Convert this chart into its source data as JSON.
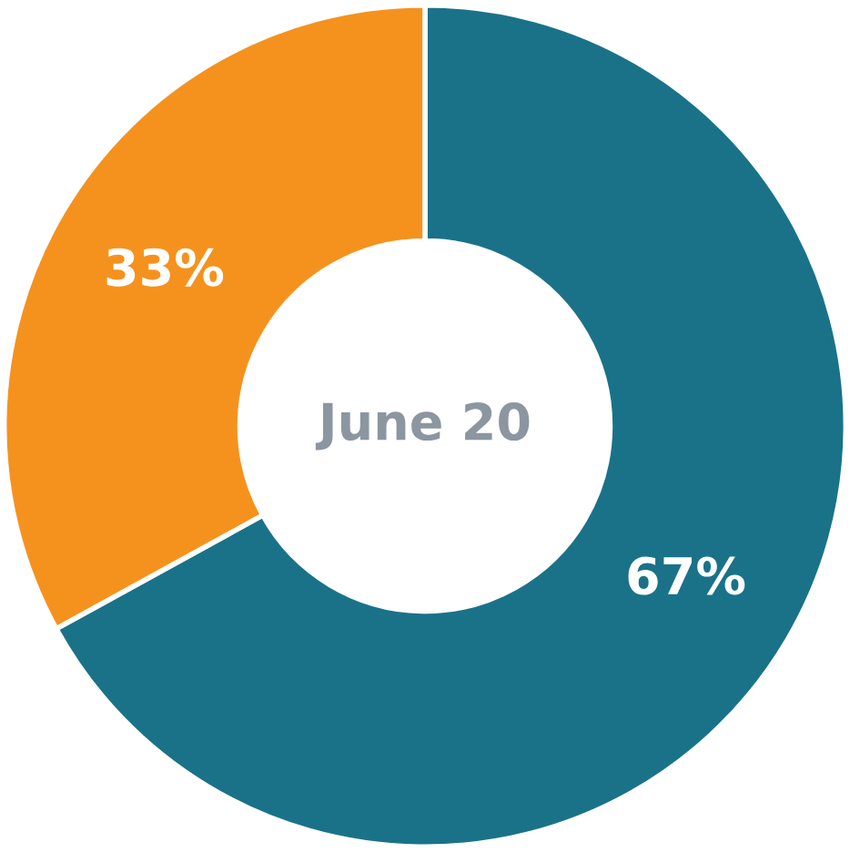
{
  "chart_data": {
    "type": "donut",
    "title": "June 20",
    "categories": [
      null,
      null
    ],
    "values": [
      67,
      33
    ],
    "colors": [
      "#1a7289",
      "#f5921e"
    ],
    "value_labels": [
      "67%",
      "33%"
    ],
    "legend": false
  }
}
